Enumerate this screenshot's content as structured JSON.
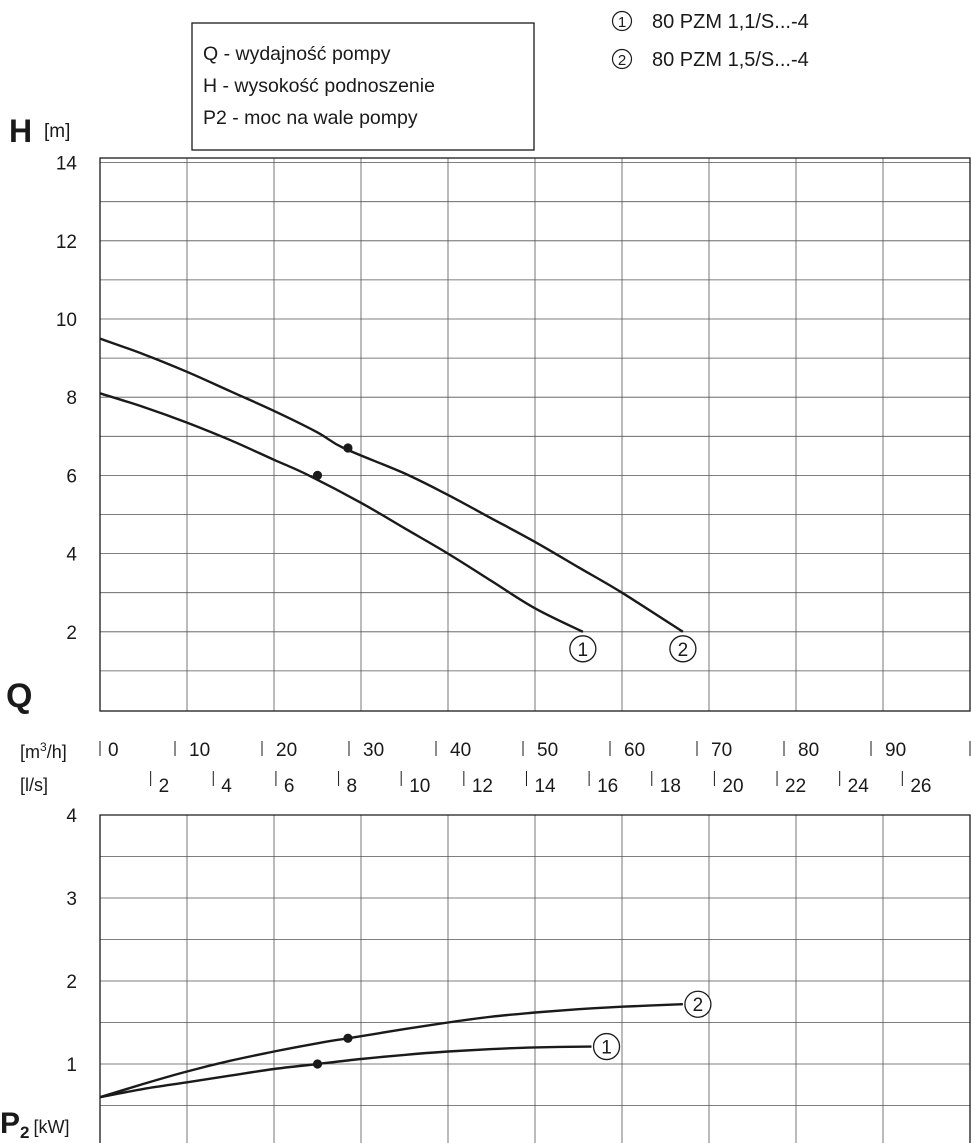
{
  "legend_box": {
    "lines": [
      "Q - wydajność pompy",
      "H - wysokość podnoszenie",
      "P2 - moc na wale pompy"
    ]
  },
  "series_legend": [
    {
      "marker": "1",
      "name": "80 PZM 1,1/S...-4"
    },
    {
      "marker": "2",
      "name": "80 PZM 1,5/S...-4"
    }
  ],
  "axis_labels": {
    "h_symbol": "H",
    "h_unit": "[m]",
    "q_symbol": "Q",
    "q_unit_m3h_pre": "[m",
    "q_unit_m3h_sup": "3",
    "q_unit_m3h_post": "/h]",
    "q_unit_ls": "[l/s]",
    "p_symbol": "P",
    "p_sub": "2",
    "p_unit": "[kW]"
  },
  "chart_data": [
    {
      "type": "line",
      "title": "",
      "xlabel": "Q [m3/h]",
      "ylabel": "H [m]",
      "xlim": [
        0,
        100
      ],
      "ylim": [
        0,
        14
      ],
      "yticks": [
        2,
        4,
        6,
        8,
        10,
        12,
        14
      ],
      "grid": true,
      "series": [
        {
          "name": "80 PZM 1,1/S...-4",
          "marker": "1",
          "x": [
            0,
            5,
            10,
            15,
            20,
            24,
            30,
            35,
            40,
            45,
            50,
            55.5
          ],
          "y": [
            8.1,
            7.75,
            7.35,
            6.9,
            6.4,
            6.0,
            5.3,
            4.65,
            4.0,
            3.3,
            2.6,
            2.0
          ],
          "point": {
            "x": 25,
            "y": 6.0
          }
        },
        {
          "name": "80 PZM 1,5/S...-4",
          "marker": "2",
          "x": [
            0,
            5,
            10,
            15,
            20,
            25,
            28,
            35,
            40,
            45,
            50,
            55,
            60,
            67
          ],
          "y": [
            9.5,
            9.1,
            8.65,
            8.15,
            7.65,
            7.1,
            6.7,
            6.05,
            5.5,
            4.9,
            4.3,
            3.65,
            3.0,
            2.0
          ],
          "point": {
            "x": 28.5,
            "y": 6.7
          }
        }
      ]
    },
    {
      "type": "line",
      "title": "",
      "xlabel": "Q [m3/h]",
      "ylabel": "P2 [kW]",
      "xlim": [
        0,
        100
      ],
      "ylim": [
        0,
        4
      ],
      "yticks": [
        1,
        2,
        3,
        4
      ],
      "grid": true,
      "series": [
        {
          "name": "80 PZM 1,1/S...-4",
          "marker": "1",
          "x": [
            0,
            5,
            10,
            15,
            20,
            25,
            30,
            35,
            40,
            45,
            50,
            56.5
          ],
          "y": [
            0.6,
            0.7,
            0.78,
            0.86,
            0.94,
            1.0,
            1.06,
            1.11,
            1.15,
            1.18,
            1.2,
            1.21
          ],
          "point": {
            "x": 25,
            "y": 1.0
          }
        },
        {
          "name": "80 PZM 1,5/S...-4",
          "marker": "2",
          "x": [
            0,
            5,
            10,
            15,
            20,
            25,
            28.5,
            35,
            40,
            45,
            50,
            55,
            60,
            67
          ],
          "y": [
            0.6,
            0.76,
            0.91,
            1.04,
            1.15,
            1.25,
            1.31,
            1.42,
            1.5,
            1.57,
            1.62,
            1.66,
            1.69,
            1.72
          ],
          "point": {
            "x": 28.5,
            "y": 1.31
          }
        }
      ]
    }
  ],
  "q_scale": {
    "m3h_ticks": [
      "0",
      "10",
      "20",
      "30",
      "40",
      "50",
      "60",
      "70",
      "80",
      "90"
    ],
    "ls_ticks": [
      "2",
      "4",
      "6",
      "8",
      "10",
      "12",
      "14",
      "16",
      "18",
      "20",
      "22",
      "24",
      "26"
    ]
  }
}
